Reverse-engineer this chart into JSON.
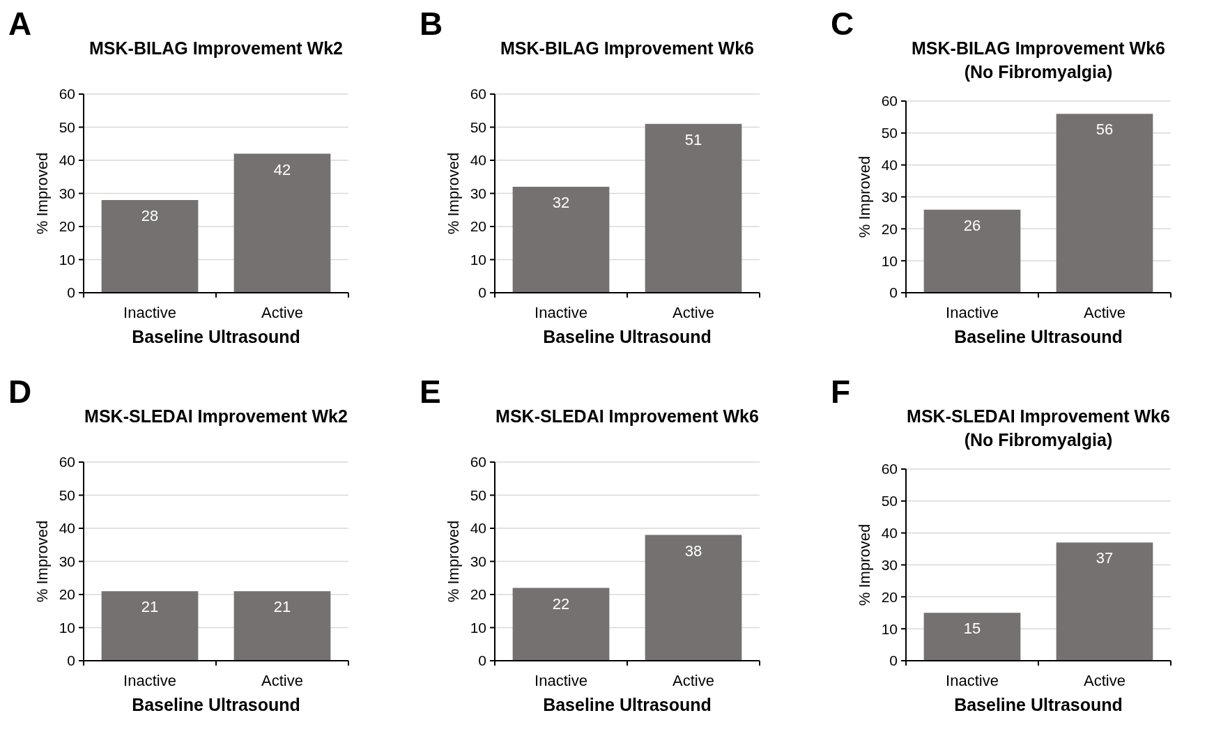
{
  "chart_data": [
    {
      "type": "bar",
      "title": "MSK-BILAG Improvement Wk2",
      "annotations": [
        "A"
      ],
      "categories": [
        "Inactive",
        "Active"
      ],
      "values": [
        28,
        42
      ],
      "color": "#757171",
      "xlabel": "Baseline Ultrasound",
      "ylabel": "% Improved",
      "ylim": [
        0,
        60
      ],
      "yticks": [
        0,
        10,
        20,
        30,
        40,
        50,
        60
      ],
      "grid": "y",
      "data_labels": true
    },
    {
      "type": "bar",
      "title": "MSK-BILAG Improvement Wk6",
      "annotations": [
        "B"
      ],
      "categories": [
        "Inactive",
        "Active"
      ],
      "values": [
        32,
        51
      ],
      "color": "#757171",
      "xlabel": "Baseline Ultrasound",
      "ylabel": "% Improved",
      "ylim": [
        0,
        60
      ],
      "yticks": [
        0,
        10,
        20,
        30,
        40,
        50,
        60
      ],
      "grid": "y",
      "data_labels": true
    },
    {
      "type": "bar",
      "title": "MSK-BILAG Improvement Wk6",
      "subtitle": "(No Fibromyalgia)",
      "annotations": [
        "C"
      ],
      "categories": [
        "Inactive",
        "Active"
      ],
      "values": [
        26,
        56
      ],
      "color": "#757171",
      "xlabel": "Baseline Ultrasound",
      "ylabel": "% Improved",
      "ylim": [
        0,
        60
      ],
      "yticks": [
        0,
        10,
        20,
        30,
        40,
        50,
        60
      ],
      "grid": "y",
      "data_labels": true
    },
    {
      "type": "bar",
      "title": "MSK-SLEDAI Improvement Wk2",
      "annotations": [
        "D"
      ],
      "categories": [
        "Inactive",
        "Active"
      ],
      "values": [
        21,
        21
      ],
      "color": "#757171",
      "xlabel": "Baseline Ultrasound",
      "ylabel": "% Improved",
      "ylim": [
        0,
        60
      ],
      "yticks": [
        0,
        10,
        20,
        30,
        40,
        50,
        60
      ],
      "grid": "y",
      "data_labels": true
    },
    {
      "type": "bar",
      "title": "MSK-SLEDAI Improvement Wk6",
      "annotations": [
        "E"
      ],
      "categories": [
        "Inactive",
        "Active"
      ],
      "values": [
        22,
        38
      ],
      "color": "#757171",
      "xlabel": "Baseline Ultrasound",
      "ylabel": "% Improved",
      "ylim": [
        0,
        60
      ],
      "yticks": [
        0,
        10,
        20,
        30,
        40,
        50,
        60
      ],
      "grid": "y",
      "data_labels": true
    },
    {
      "type": "bar",
      "title": "MSK-SLEDAI Improvement Wk6",
      "subtitle": "(No Fibromyalgia)",
      "annotations": [
        "F"
      ],
      "categories": [
        "Inactive",
        "Active"
      ],
      "values": [
        15,
        37
      ],
      "color": "#757171",
      "xlabel": "Baseline Ultrasound",
      "ylabel": "% Improved",
      "ylim": [
        0,
        60
      ],
      "yticks": [
        0,
        10,
        20,
        30,
        40,
        50,
        60
      ],
      "grid": "y",
      "data_labels": true
    }
  ]
}
